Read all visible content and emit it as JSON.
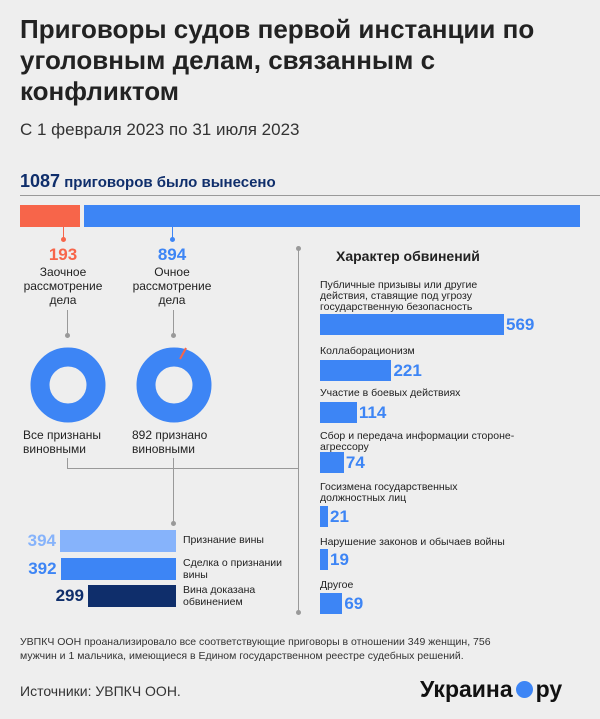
{
  "header": {
    "title": "Приговоры судов первой инстанции по уголовным делам, связанным с конфликтом",
    "subtitle": "С 1 февраля 2023 по 31 июля 2023"
  },
  "total": {
    "value": "1087",
    "label": "приговоров было вынесено"
  },
  "colors": {
    "blue": "#3d85f5",
    "orange": "#f7654a",
    "navy": "#0f2e6b",
    "light_blue": "#86b3fb",
    "background": "#eeeeee"
  },
  "chart_data": [
    {
      "type": "bar",
      "orientation": "horizontal-stacked",
      "categories": [
        "Заочное рассмотрение дела",
        "Очное рассмотрение дела"
      ],
      "values": [
        193,
        894
      ],
      "total": 1087
    },
    {
      "type": "pie",
      "donut": true,
      "label": "Все признаны виновными",
      "slices": [
        {
          "value": 193,
          "color": "#3d85f5"
        }
      ]
    },
    {
      "type": "pie",
      "donut": true,
      "label": "892 признано виновными",
      "slices": [
        {
          "value": 892,
          "color": "#3d85f5"
        },
        {
          "value": 2,
          "color": "#f7654a"
        }
      ]
    },
    {
      "type": "bar",
      "orientation": "horizontal",
      "categories": [
        "Признание вины",
        "Сделка о признании вины",
        "Вина доказана обвинением"
      ],
      "values": [
        394,
        392,
        299
      ],
      "colors": [
        "#86b3fb",
        "#3d85f5",
        "#0f2e6b"
      ]
    },
    {
      "type": "bar",
      "orientation": "horizontal",
      "title": "Характер обвинений",
      "categories": [
        "Публичные призывы или другие действия, ставящие под угрозу государственную безопасность",
        "Коллаборационизм",
        "Участие в боевых действиях",
        "Сбор и передача информации стороне-агрессору",
        "Госизмена государственных должностных лиц",
        "Нарушение законов и обычаев войны",
        "Другое"
      ],
      "values": [
        569,
        221,
        114,
        74,
        21,
        19,
        69
      ]
    }
  ],
  "split": {
    "absentia_value": "193",
    "absentia_label": "Заочное рассмотрение дела",
    "inperson_value": "894",
    "inperson_label": "Очное рассмотрение дела"
  },
  "donuts": {
    "left_label": "Все признаны виновными",
    "right_label": "892 признано виновными"
  },
  "guilt": [
    {
      "value": "394",
      "label": "Признание вины"
    },
    {
      "value": "392",
      "label": "Сделка о признании вины"
    },
    {
      "value": "299",
      "label": "Вина доказана обвинением"
    }
  ],
  "charges": {
    "title": "Характер обвинений",
    "items": [
      {
        "label": "Публичные призывы или другие действия, ставящие под угрозу государственную безопасность",
        "value": "569"
      },
      {
        "label": "Коллаборационизм",
        "value": "221"
      },
      {
        "label": "Участие в боевых действиях",
        "value": "114"
      },
      {
        "label": "Сбор и передача информации стороне-агрессору",
        "value": "74"
      },
      {
        "label": "Госизмена государственных должностных лиц",
        "value": "21"
      },
      {
        "label": "Нарушение законов и обычаев войны",
        "value": "19"
      },
      {
        "label": "Другое",
        "value": "69"
      }
    ]
  },
  "footnote": "УВПКЧ ООН проанализировало все соответствующие приговоры в отношении 349 женщин, 756 мужчин и 1 мальчика, имеющиеся в Едином государственном реестре судебных решений.",
  "source": "Источники: УВПКЧ ООН.",
  "logo": {
    "left": "Украина",
    "right": "ру"
  }
}
